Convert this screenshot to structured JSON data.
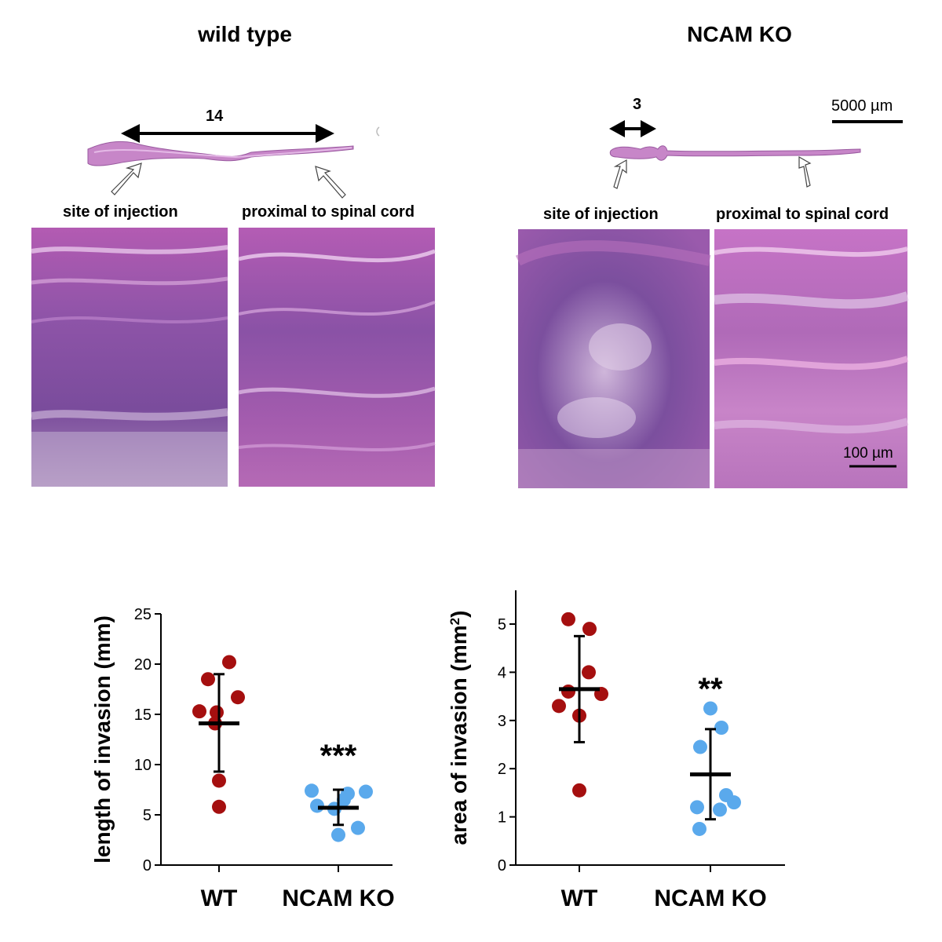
{
  "panels": {
    "wild_type": {
      "title": "wild type",
      "length_label": "14",
      "left_label": "site of injection",
      "right_label": "proximal to spinal cord"
    },
    "ncam_ko": {
      "title": "NCAM KO",
      "length_label": "3",
      "left_label": "site of injection",
      "right_label": "proximal to spinal cord",
      "scalebar_macro": "5000 µm",
      "scalebar_micro": "100 µm"
    }
  },
  "colors": {
    "wt": "#a50f0f",
    "ko": "#5aa9ec",
    "stain_pink": "#c870c6",
    "stain_purple": "#6a3b8f"
  },
  "chart_data": [
    {
      "type": "scatter",
      "title": "",
      "xlabel": "",
      "ylabel": "length of invasion (mm)",
      "categories": [
        "WT",
        "NCAM KO"
      ],
      "ylim": [
        0,
        25
      ],
      "yticks": [
        "0",
        "5",
        "10",
        "15",
        "20",
        "25"
      ],
      "significance": [
        "",
        "***"
      ],
      "series": [
        {
          "values": [
            20.2,
            18.5,
            16.7,
            15.3,
            15.2,
            14.1,
            8.4,
            5.8
          ],
          "mean": 14.1,
          "sd_low": 9.3,
          "sd_high": 19.0
        },
        {
          "values": [
            7.4,
            7.3,
            7.1,
            6.5,
            5.9,
            5.6,
            3.7,
            3.0
          ],
          "mean": 5.7,
          "sd_low": 4.0,
          "sd_high": 7.5
        }
      ]
    },
    {
      "type": "scatter",
      "title": "",
      "xlabel": "",
      "ylabel": "area of invasion (mm",
      "ylabel_sup": "2",
      "ylabel_end": ")",
      "categories": [
        "WT",
        "NCAM KO"
      ],
      "ylim": [
        0,
        5.7
      ],
      "yticks": [
        "0",
        "1",
        "2",
        "3",
        "4",
        "5"
      ],
      "significance": [
        "",
        "**"
      ],
      "series": [
        {
          "values": [
            5.1,
            4.9,
            4.0,
            3.6,
            3.55,
            3.3,
            3.1,
            1.55
          ],
          "mean": 3.65,
          "sd_low": 2.55,
          "sd_high": 4.75
        },
        {
          "values": [
            3.25,
            2.85,
            2.45,
            1.45,
            1.3,
            1.2,
            1.15,
            0.75
          ],
          "mean": 1.88,
          "sd_low": 0.95,
          "sd_high": 2.82
        }
      ]
    }
  ]
}
